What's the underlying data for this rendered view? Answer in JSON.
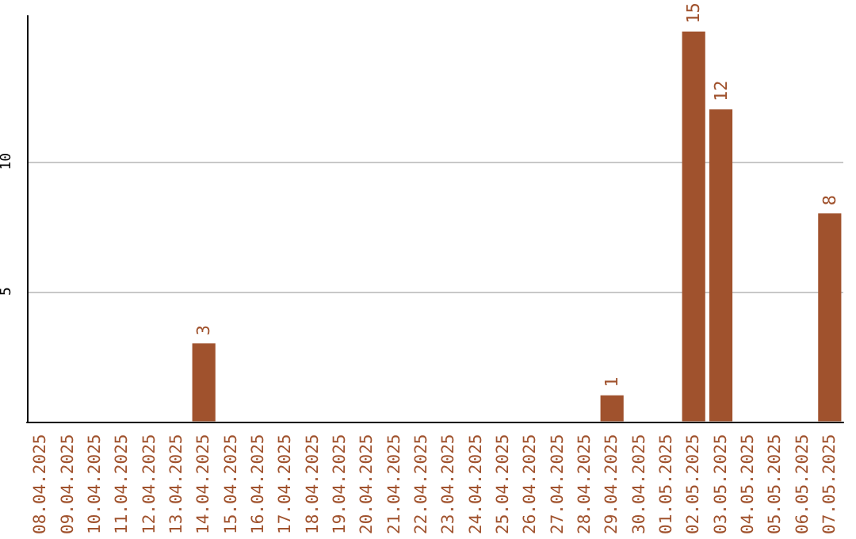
{
  "chart_data": {
    "type": "bar",
    "categories": [
      "08.04.2025",
      "09.04.2025",
      "10.04.2025",
      "11.04.2025",
      "12.04.2025",
      "13.04.2025",
      "14.04.2025",
      "15.04.2025",
      "16.04.2025",
      "17.04.2025",
      "18.04.2025",
      "19.04.2025",
      "20.04.2025",
      "21.04.2025",
      "22.04.2025",
      "23.04.2025",
      "24.04.2025",
      "25.04.2025",
      "26.04.2025",
      "27.04.2025",
      "28.04.2025",
      "29.04.2025",
      "30.04.2025",
      "01.05.2025",
      "02.05.2025",
      "03.05.2025",
      "04.05.2025",
      "05.05.2025",
      "06.05.2025",
      "07.05.2025"
    ],
    "values": [
      0,
      0,
      0,
      0,
      0,
      0,
      3,
      0,
      0,
      0,
      0,
      0,
      0,
      0,
      0,
      0,
      0,
      0,
      0,
      0,
      0,
      1,
      0,
      0,
      15,
      12,
      0,
      0,
      0,
      8
    ],
    "value_labels": [
      null,
      null,
      null,
      null,
      null,
      null,
      "3",
      null,
      null,
      null,
      null,
      null,
      null,
      null,
      null,
      null,
      null,
      null,
      null,
      null,
      null,
      "1",
      null,
      null,
      "15",
      "12",
      null,
      null,
      null,
      "8"
    ],
    "color": "#a0522d",
    "ylim": [
      0,
      15.6
    ],
    "yticks": [
      5,
      10
    ],
    "grid": "y"
  }
}
